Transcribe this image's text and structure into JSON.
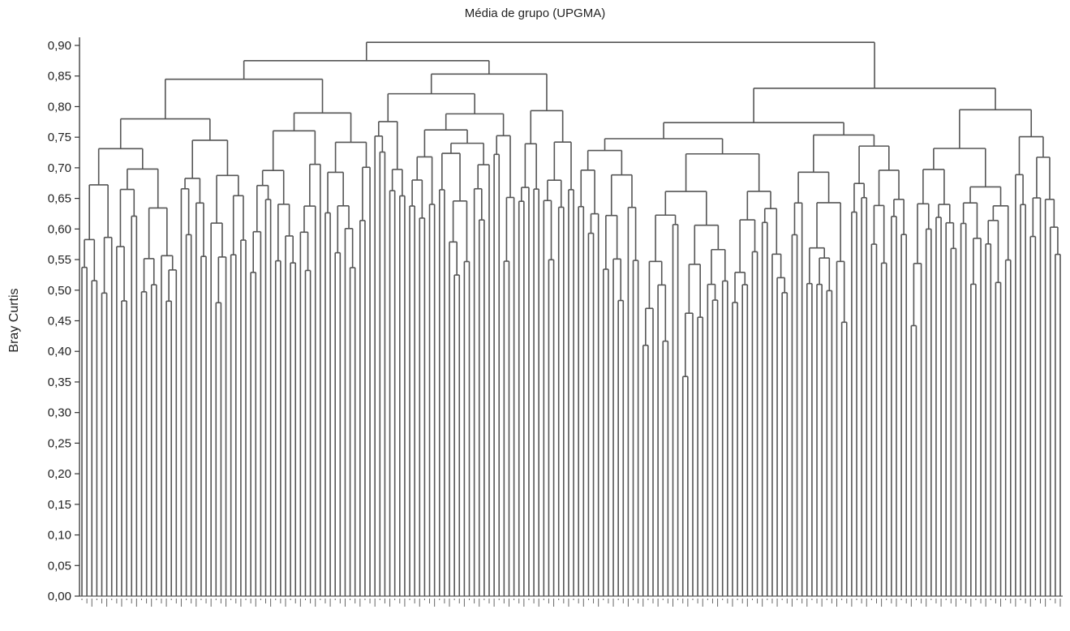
{
  "chart_data": {
    "type": "dendrogram",
    "title": "Média de grupo (UPGMA)",
    "ylabel": "Bray Curtis",
    "xlabel": "",
    "ylim": [
      0.0,
      0.9
    ],
    "yticks": [
      "0,00",
      "0,05",
      "0,10",
      "0,15",
      "0,20",
      "0,25",
      "0,30",
      "0,35",
      "0,40",
      "0,45",
      "0,50",
      "0,55",
      "0,60",
      "0,65",
      "0,70",
      "0,75",
      "0,80",
      "0,85",
      "0,90"
    ],
    "leaf_count": 198,
    "root_height": 0.905,
    "major_clusters": [
      {
        "leaves": [
          0,
          99
        ],
        "height": 0.875
      },
      {
        "leaves": [
          100,
          197
        ],
        "height": 0.83
      }
    ],
    "grid": false,
    "legend": "none",
    "colors": {
      "line": "#555555",
      "axis": "#333333",
      "text": "#222222"
    }
  }
}
